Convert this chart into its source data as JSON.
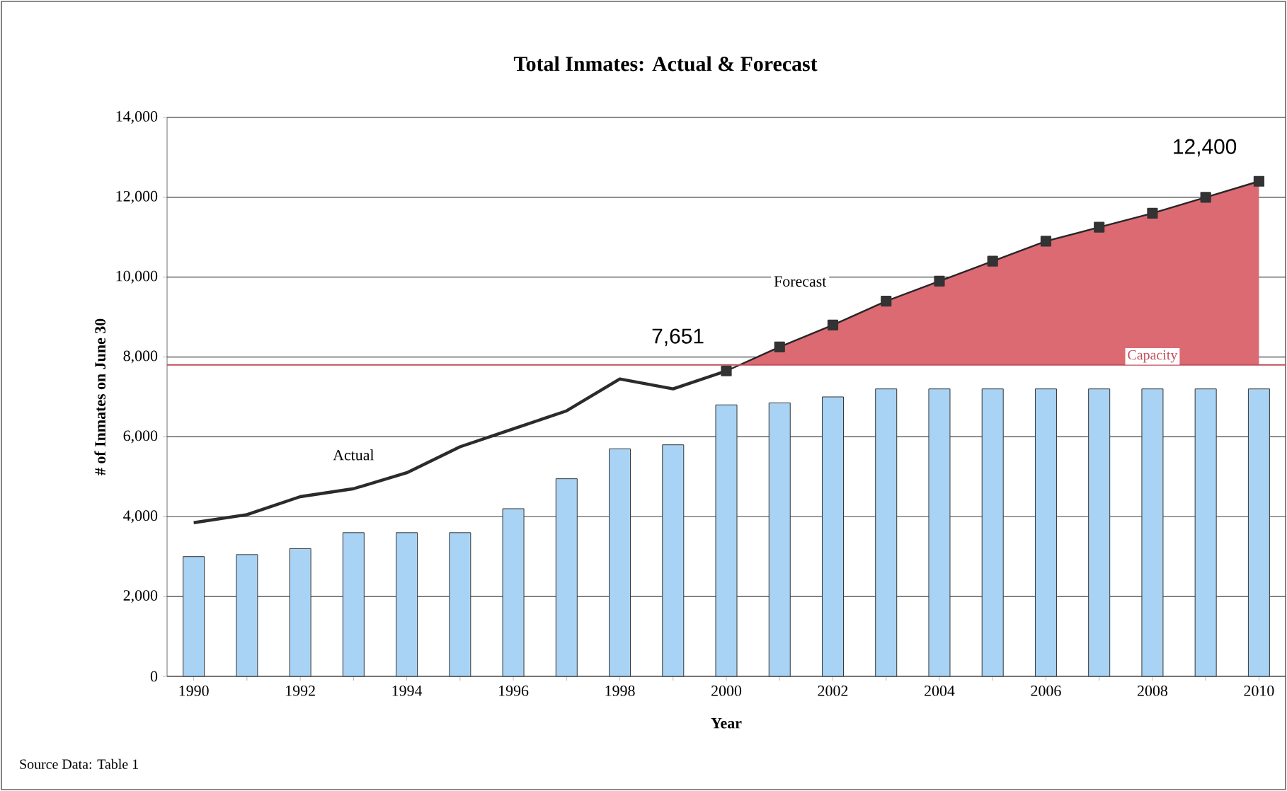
{
  "chart_data": {
    "type": "bar",
    "title": "Total Inmates: Actual & Forecast",
    "xlabel": "Year",
    "ylabel": "# of Inmates on June 30",
    "annotations": [
      {
        "text": "7,651",
        "x": 2000,
        "y": 7651
      },
      {
        "text": "12,400",
        "x": 2010,
        "y": 12400
      },
      "Source Data: Table 1"
    ],
    "series": [
      {
        "color": "#a9d3f5",
        "x": [
          1990,
          1991,
          1992,
          1993,
          1994,
          1995,
          1996,
          1997,
          1998,
          1999,
          2000,
          2001,
          2002,
          2003,
          2004,
          2005,
          2006,
          2007,
          2008,
          2009,
          2010
        ],
        "values": [
          3000,
          3050,
          3200,
          3600,
          3600,
          3600,
          4200,
          4950,
          5700,
          5800,
          6800,
          6850,
          7000,
          7200,
          7200,
          7200,
          7200,
          7200,
          7200,
          7200,
          7200
        ]
      },
      {
        "type": "line",
        "name": "Actual",
        "color": "#2b2b2b",
        "x": [
          1990,
          1991,
          1992,
          1993,
          1994,
          1995,
          1996,
          1997,
          1998,
          1999,
          2000
        ],
        "values": [
          3850,
          4050,
          4500,
          4700,
          5100,
          5750,
          6200,
          6650,
          7450,
          7200,
          7651
        ]
      },
      {
        "type": "area",
        "name": "Forecast",
        "color": "#dc6a72",
        "marker": "square",
        "x": [
          2000,
          2001,
          2002,
          2003,
          2004,
          2005,
          2006,
          2007,
          2008,
          2009,
          2010
        ],
        "values": [
          7651,
          8250,
          8800,
          9400,
          9900,
          10400,
          10900,
          11250,
          11600,
          12000,
          12400
        ]
      }
    ],
    "ref_lines": [
      {
        "axis": "y",
        "value": 7800,
        "label": "Capacity",
        "color": "#c0505a"
      }
    ],
    "xlim": [
      1989.5,
      2010.5
    ],
    "ylim": [
      0,
      14000
    ],
    "xticks": [
      1990,
      1992,
      1994,
      1996,
      1998,
      2000,
      2002,
      2004,
      2006,
      2008,
      2010
    ],
    "yticks": [
      {
        "value": 0,
        "label": "0"
      },
      {
        "value": 2000,
        "label": "2,000"
      },
      {
        "value": 4000,
        "label": "4,000"
      },
      {
        "value": 6000,
        "label": "6,000"
      },
      {
        "value": 8000,
        "label": "8,000"
      },
      {
        "value": 10000,
        "label": "10,000"
      },
      {
        "value": 12000,
        "label": "12,000"
      },
      {
        "value": 14000,
        "label": "14,000"
      }
    ],
    "grid": "y"
  }
}
